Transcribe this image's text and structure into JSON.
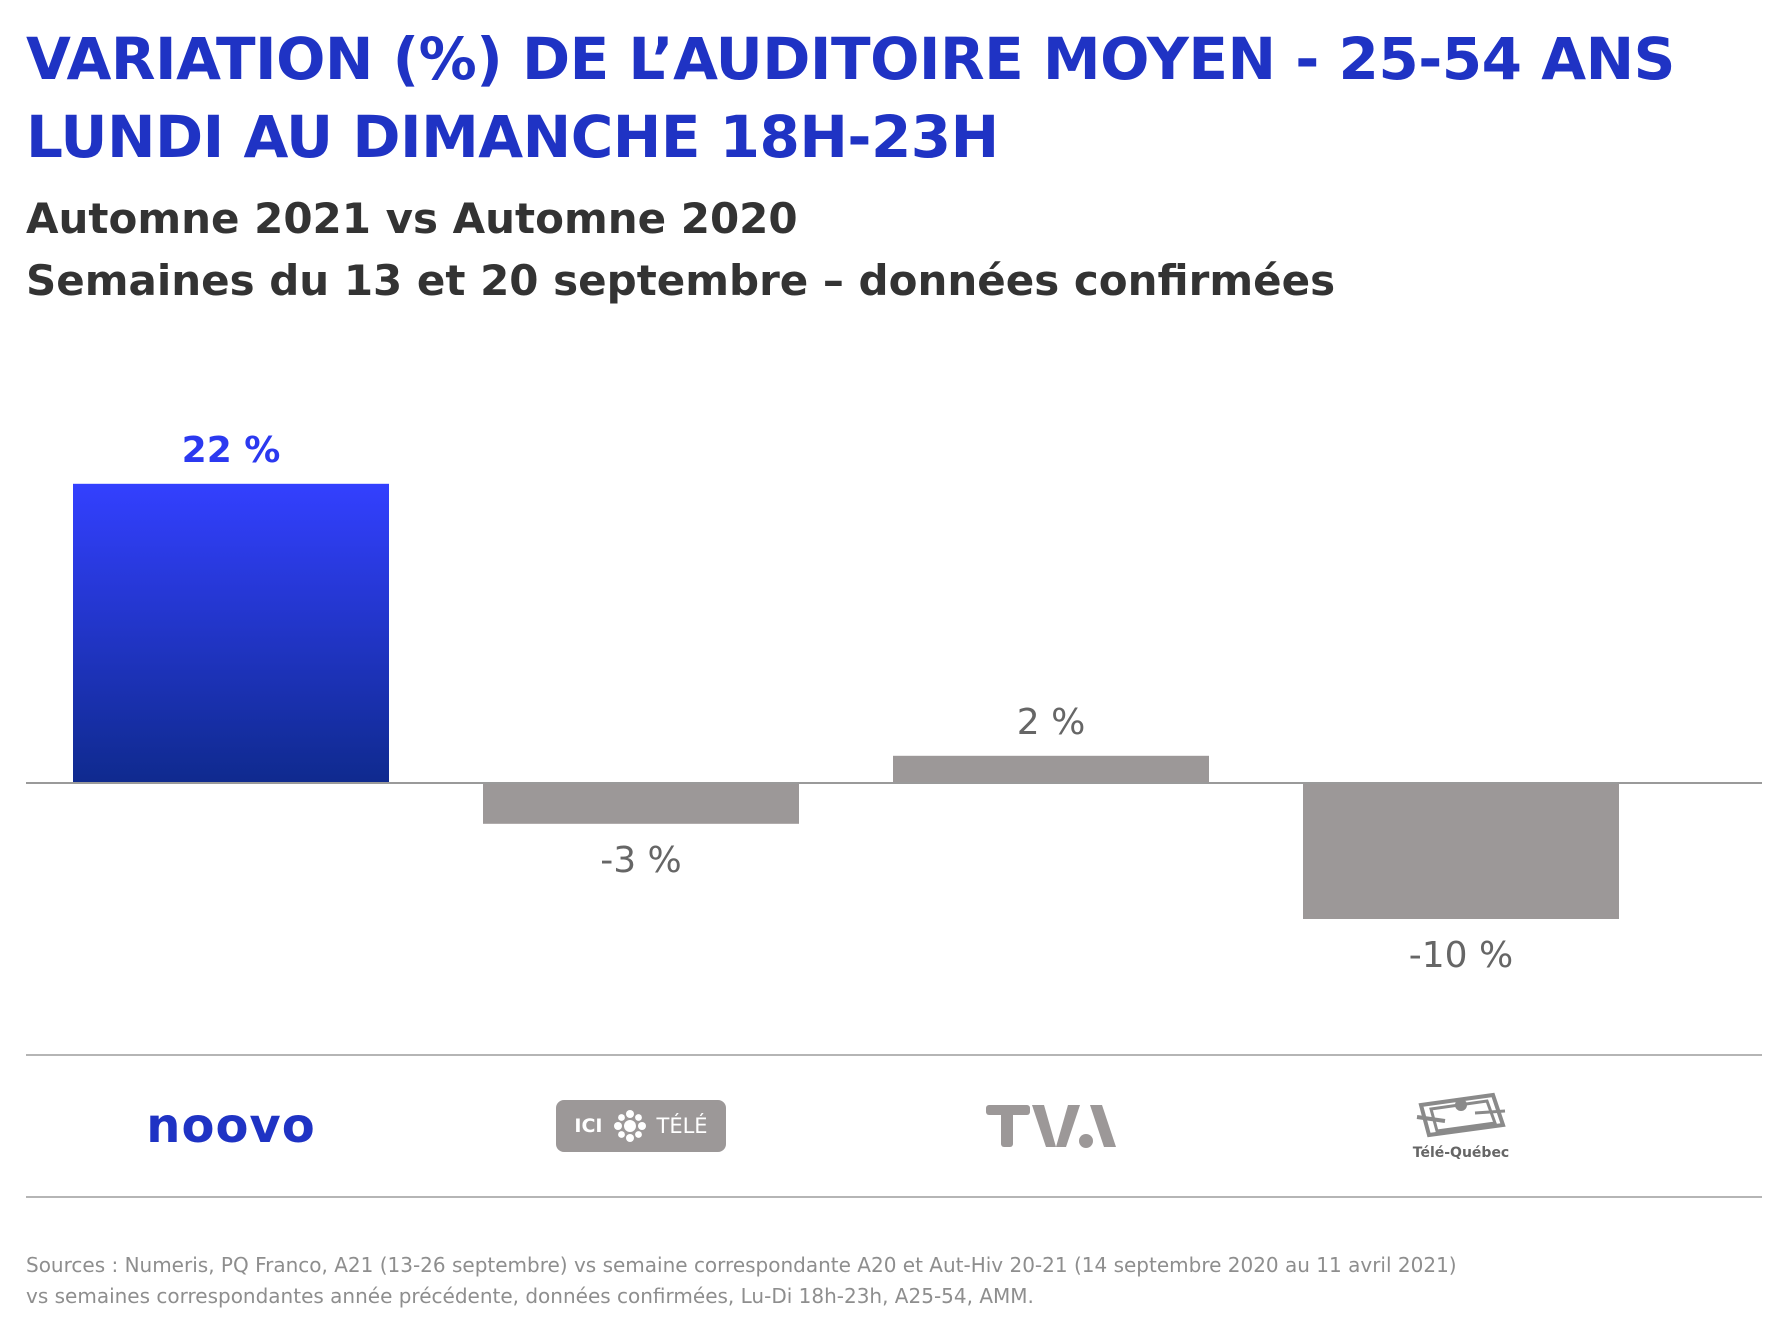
{
  "title": {
    "line1": "VARIATION (%) DE L’AUDITOIRE MOYEN - 25-54 ANS",
    "line2": "LUNDI AU DIMANCHE 18H-23H"
  },
  "subtitle": {
    "line1": "Automne 2021 vs Automne 2020",
    "line2": "Semaines du 13 et 20 septembre – données confirmées"
  },
  "chart_data": {
    "type": "bar",
    "categories": [
      "Noovo",
      "ICI Télé",
      "TVA",
      "Télé-Québec"
    ],
    "values": [
      22,
      -3,
      2,
      -10
    ],
    "value_labels": [
      "22 %",
      "-3 %",
      "2 %",
      "-10 %"
    ],
    "unit": "%",
    "ylim": [
      -12,
      24
    ],
    "grid": false,
    "legend": "none",
    "colors": {
      "highlight_gradient_top": "#3340ff",
      "highlight_gradient_bottom": "#0f2a8e",
      "other": "#9c9898",
      "highlight_label": "#2b39f0",
      "other_label": "#666666",
      "baseline": "#9a9a9a"
    }
  },
  "logos": {
    "noovo": "noovo",
    "ici_left": "ICI",
    "ici_right": "TÉLÉ",
    "tva": "TVA",
    "telequebec": "Télé-Québec"
  },
  "sources": {
    "line1": "Sources : Numeris, PQ Franco, A21 (13-26 septembre) vs semaine correspondante A20 et Aut-Hiv 20-21 (14 septembre 2020 au 11 avril 2021)",
    "line2": "vs semaines correspondantes année précédente, données confirmées, Lu-Di 18h-23h, A25-54, AMM."
  },
  "colors": {
    "title": "#1f33c4",
    "subtitle": "#333333",
    "separator": "#b5b5b5",
    "sources": "#8e8e8e"
  }
}
